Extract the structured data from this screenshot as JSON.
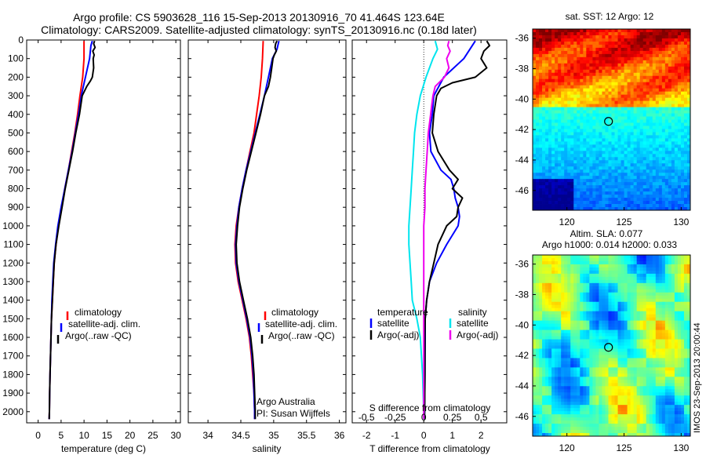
{
  "header": {
    "line1": "Argo profile: CS 5903628_116 15-Sep-2013 20130916_70 41.464S 123.64E",
    "line2": "Climatology: CARS2009. Satellite-adjusted climatology: synTS_20130916.nc (0.18d later)"
  },
  "colors": {
    "climatology": "#ff0000",
    "satellite": "#0000ff",
    "argo": "#000000",
    "salinity_satellite": "#00e5ee",
    "salinity_argo": "#ee00ee"
  },
  "chart_data": [
    {
      "type": "line",
      "xlabel": "temperature (deg C)",
      "xlim": [
        -2.5,
        31
      ],
      "ylim": [
        2060,
        0
      ],
      "xticks": [
        "0",
        "5",
        "10",
        "15",
        "20",
        "25",
        "30"
      ],
      "yticks": [
        "0",
        "100",
        "200",
        "300",
        "400",
        "500",
        "600",
        "700",
        "800",
        "900",
        "1000",
        "1100",
        "1200",
        "1300",
        "1400",
        "1500",
        "1600",
        "1700",
        "1800",
        "1900",
        "2000"
      ],
      "legend": [
        "climatology",
        "satellite-adj. clim.",
        "Argo(..raw -QC)"
      ],
      "series": [
        {
          "name": "climatology",
          "depth": [
            5,
            100,
            200,
            300,
            400,
            500,
            600,
            700,
            800,
            900,
            1000,
            1100,
            1200,
            1300,
            1400,
            1500,
            1600,
            1700,
            1800,
            1900,
            2000,
            2040
          ],
          "values": [
            10.0,
            10.0,
            9.7,
            9.1,
            8.6,
            8.0,
            7.3,
            6.6,
            5.8,
            5.1,
            4.4,
            3.9,
            3.5,
            3.3,
            3.1,
            2.9,
            2.8,
            2.7,
            2.6,
            2.5,
            2.45,
            2.4
          ]
        },
        {
          "name": "satellite-adj. clim.",
          "depth": [
            5,
            30,
            100,
            200,
            300,
            400,
            500,
            600,
            700,
            800,
            900,
            1000,
            1100,
            1200,
            1300,
            1400,
            1500,
            1600,
            1700,
            1800,
            1900,
            2000,
            2040
          ],
          "values": [
            11.8,
            11.5,
            11.2,
            10.3,
            9.4,
            8.8,
            8.1,
            7.4,
            6.6,
            5.8,
            5.0,
            4.3,
            3.8,
            3.4,
            3.2,
            3.0,
            2.9,
            2.8,
            2.7,
            2.6,
            2.5,
            2.45,
            2.4
          ]
        },
        {
          "name": "Argo(..raw -QC)",
          "depth": [
            5,
            20,
            40,
            60,
            80,
            100,
            150,
            200,
            220,
            250,
            300,
            400,
            500,
            600,
            700,
            800,
            900,
            1000,
            1100,
            1200,
            1300,
            1400,
            1500,
            1600,
            1700,
            1800,
            1900,
            2000,
            2040
          ],
          "values": [
            12.3,
            12.1,
            12.4,
            11.9,
            12.2,
            12.0,
            12.1,
            11.8,
            11.4,
            10.6,
            9.6,
            9.0,
            8.2,
            7.5,
            6.7,
            5.9,
            5.2,
            4.5,
            3.9,
            3.5,
            3.3,
            3.1,
            2.9,
            2.8,
            2.7,
            2.6,
            2.5,
            2.45,
            2.4
          ]
        }
      ]
    },
    {
      "type": "line",
      "xlabel": "salinity",
      "xlim": [
        33.7,
        36.1
      ],
      "ylim": [
        2060,
        0
      ],
      "xticks": [
        "34",
        "34.5",
        "35",
        "35.5",
        "36"
      ],
      "legend": [
        "climatology",
        "satellite-adj. clim.",
        "Argo(..raw -QC)"
      ],
      "annotation": [
        "Argo Australia",
        "PI: Susan Wijffels"
      ],
      "series": [
        {
          "name": "climatology",
          "depth": [
            5,
            100,
            200,
            300,
            400,
            500,
            600,
            700,
            800,
            900,
            1000,
            1100,
            1200,
            1300,
            1400,
            1500,
            1600,
            1700,
            1800,
            1900,
            2000,
            2040
          ],
          "values": [
            34.84,
            34.83,
            34.81,
            34.78,
            34.74,
            34.7,
            34.64,
            34.58,
            34.52,
            34.47,
            34.43,
            34.41,
            34.42,
            34.46,
            34.52,
            34.58,
            34.63,
            34.66,
            34.68,
            34.7,
            34.71,
            34.71
          ]
        },
        {
          "name": "satellite-adj. clim.",
          "depth": [
            5,
            50,
            100,
            200,
            300,
            400,
            500,
            600,
            700,
            800,
            900,
            1000,
            1100,
            1200,
            1300,
            1400,
            1500,
            1600,
            1700,
            1800,
            1900,
            2000,
            2040
          ],
          "values": [
            35.08,
            35.05,
            34.98,
            34.92,
            34.86,
            34.79,
            34.72,
            34.65,
            34.58,
            34.52,
            34.47,
            34.44,
            34.42,
            34.43,
            34.47,
            34.53,
            34.59,
            34.64,
            34.67,
            34.69,
            34.7,
            34.71,
            34.71
          ]
        },
        {
          "name": "Argo(..raw -QC)",
          "depth": [
            5,
            20,
            40,
            60,
            80,
            100,
            150,
            200,
            250,
            300,
            400,
            500,
            600,
            700,
            800,
            900,
            1000,
            1100,
            1200,
            1300,
            1400,
            1500,
            1600,
            1700,
            1800,
            1900,
            2000,
            2040
          ],
          "values": [
            35.05,
            35.03,
            35.02,
            35.04,
            35.01,
            34.99,
            34.97,
            34.95,
            34.92,
            34.86,
            34.8,
            34.73,
            34.66,
            34.59,
            34.53,
            34.48,
            34.45,
            34.43,
            34.44,
            34.48,
            34.54,
            34.6,
            34.65,
            34.68,
            34.7,
            34.71,
            34.72,
            34.72
          ]
        }
      ]
    },
    {
      "type": "line",
      "xlabel": "T difference from climatology",
      "xlabel2": "S difference from climatology",
      "xlim": [
        -2.5,
        2.9
      ],
      "ylim": [
        2060,
        0
      ],
      "xticks": [
        "-2",
        "-1",
        "0",
        "1",
        "2"
      ],
      "xticks2": [
        "-0.5",
        "-0.25",
        "0",
        "0.25",
        "0.5"
      ],
      "legend_titles": [
        "temperature",
        "salinity"
      ],
      "legend": [
        "satellite",
        "Argo(-adj)",
        "satellite",
        "Argo(-adj)"
      ],
      "series": [
        {
          "name": "satellite",
          "depth": [
            5,
            100,
            200,
            300,
            400,
            500,
            600,
            700,
            750,
            800,
            850,
            900,
            950,
            1000,
            1100,
            1200,
            1300,
            1400,
            1500,
            1600,
            1800,
            2000,
            2040
          ],
          "values": [
            1.8,
            1.4,
            0.7,
            0.35,
            0.3,
            0.2,
            0.25,
            0.6,
            0.95,
            1.05,
            1.1,
            1.2,
            1.25,
            1.2,
            0.8,
            0.45,
            0.2,
            0.1,
            0.05,
            0.05,
            0.04,
            0.03,
            0.02
          ]
        },
        {
          "name": "Argo(-adj)",
          "depth": [
            5,
            30,
            60,
            100,
            150,
            200,
            230,
            260,
            300,
            350,
            400,
            500,
            600,
            700,
            750,
            800,
            850,
            900,
            950,
            1000,
            1100,
            1200,
            1300,
            1400,
            1500,
            1600,
            1800,
            2000,
            2040
          ],
          "values": [
            2.2,
            2.3,
            2.1,
            2.0,
            2.2,
            1.8,
            1.0,
            0.6,
            0.45,
            0.4,
            0.35,
            0.3,
            0.5,
            0.9,
            1.2,
            1.0,
            1.35,
            1.2,
            1.15,
            0.8,
            0.5,
            0.35,
            0.2,
            0.1,
            0.05,
            0.04,
            0.04,
            0.03,
            0.02
          ]
        },
        {
          "name": "satellite",
          "depth": [
            5,
            50,
            100,
            200,
            300,
            400,
            500,
            600,
            700,
            800,
            900,
            1000,
            1100,
            1200,
            1300,
            1400,
            1500,
            1600,
            1800,
            2000,
            2040
          ],
          "values": [
            0.1,
            0.12,
            0.08,
            0.02,
            -0.03,
            -0.06,
            -0.08,
            -0.09,
            -0.1,
            -0.11,
            -0.12,
            -0.13,
            -0.13,
            -0.12,
            -0.11,
            -0.1,
            -0.06,
            -0.03,
            -0.01,
            0,
            0
          ]
        },
        {
          "name": "Argo(-adj)",
          "depth": [
            5,
            30,
            60,
            100,
            150,
            200,
            250,
            300,
            350,
            400,
            500,
            600,
            700,
            800,
            900,
            1000,
            1200,
            1400,
            1600,
            1800,
            2000,
            2040
          ],
          "values": [
            0.22,
            0.21,
            0.23,
            0.2,
            0.22,
            0.18,
            0.1,
            0.08,
            0.07,
            0.06,
            0.04,
            0.03,
            0.02,
            0.01,
            0.01,
            0,
            0,
            0,
            0,
            0,
            0,
            0
          ]
        }
      ]
    },
    {
      "type": "heatmap",
      "title": "sat. SST: 12 Argo: 12",
      "xlim": [
        117,
        130.8
      ],
      "ylim": [
        -47.3,
        -35.4
      ],
      "xticks": [
        "120",
        "125",
        "130"
      ],
      "yticks": [
        "-36",
        "-38",
        "-40",
        "-42",
        "-44",
        "-46"
      ],
      "marker": {
        "lon": 123.64,
        "lat": -41.464
      }
    },
    {
      "type": "heatmap",
      "title": "Altim. SLA: 0.077",
      "subtitle": "Argo h1000: 0.014 h2000: 0.033",
      "xlim": [
        117,
        130.8
      ],
      "ylim": [
        -47.3,
        -35.4
      ],
      "xticks": [
        "120",
        "125",
        "130"
      ],
      "yticks": [
        "-36",
        "-38",
        "-40",
        "-42",
        "-44",
        "-46"
      ],
      "marker": {
        "lon": 123.64,
        "lat": -41.464
      },
      "side_label": "IMOS 23-Sep-2013 20:00:44"
    }
  ]
}
